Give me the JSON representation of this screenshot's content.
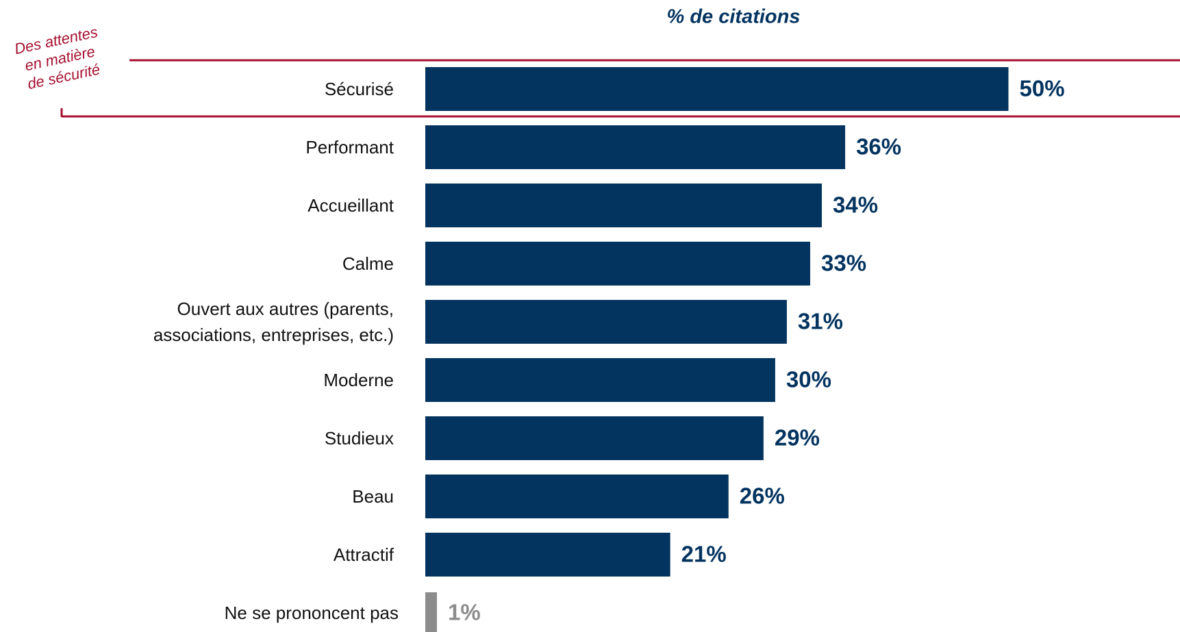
{
  "chart_data": {
    "type": "bar",
    "orientation": "horizontal",
    "title": "% de citations",
    "annotation": [
      "Des attentes",
      "en matière",
      "de sécurité"
    ],
    "categories": [
      "Sécurisé",
      "Performant",
      "Accueillant",
      "Calme",
      "Ouvert aux autres (parents, associations, entreprises, etc.)",
      "Moderne",
      "Studieux",
      "Beau",
      "Attractif",
      "Ne se prononcent pas"
    ],
    "values": [
      50,
      36,
      34,
      33,
      31,
      30,
      29,
      26,
      21,
      1
    ],
    "value_labels": [
      "50%",
      "36%",
      "34%",
      "33%",
      "31%",
      "30%",
      "29%",
      "26%",
      "21%",
      "1%"
    ],
    "colors": [
      "#03335f",
      "#03335f",
      "#03335f",
      "#03335f",
      "#03335f",
      "#03335f",
      "#03335f",
      "#03335f",
      "#03335f",
      "#8c8c8c"
    ],
    "annotation_color": "#a50f2d"
  }
}
